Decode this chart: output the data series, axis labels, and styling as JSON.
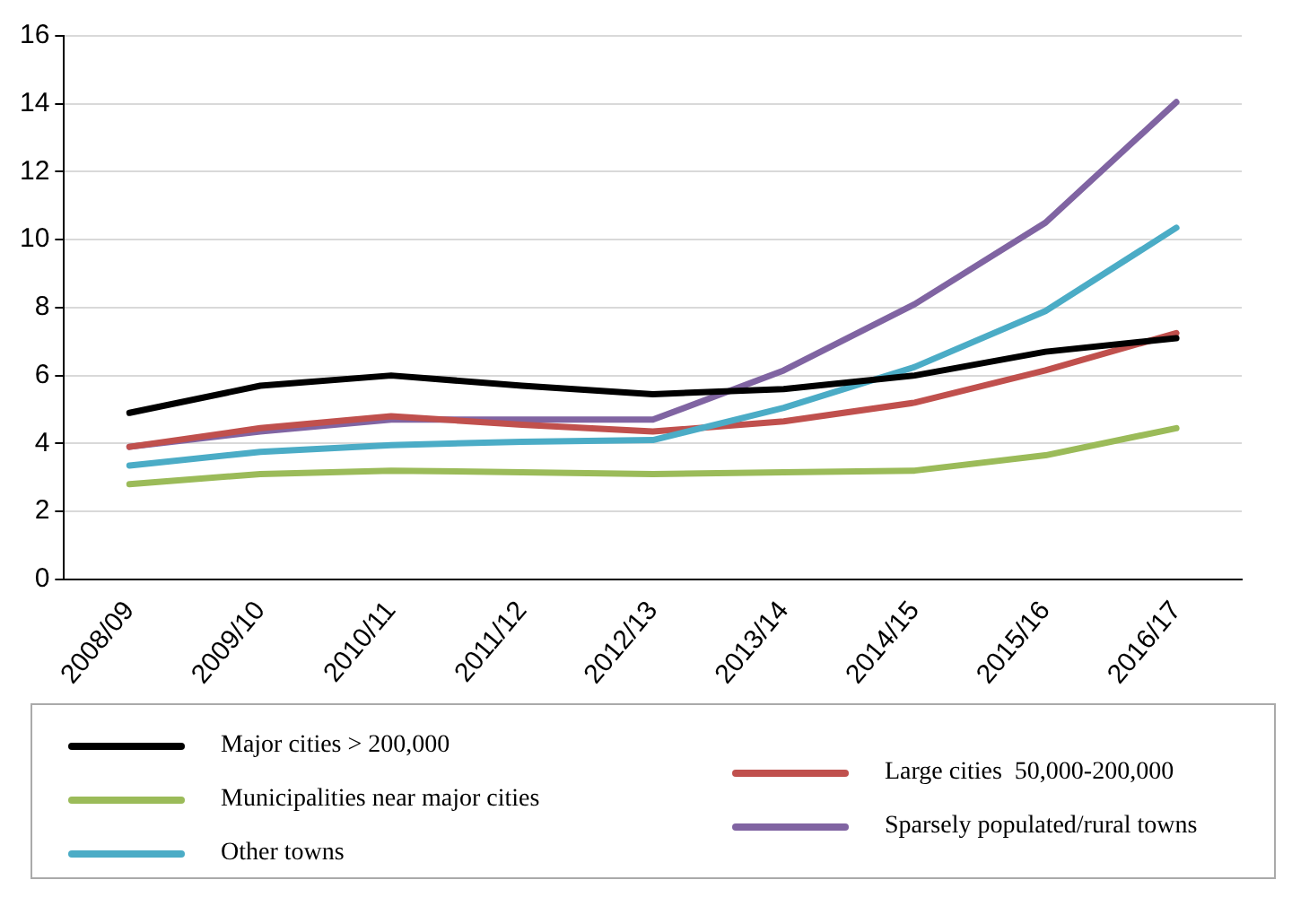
{
  "chart_data": {
    "type": "line",
    "categories": [
      "2008/09",
      "2009/10",
      "2010/11",
      "2011/12",
      "2012/13",
      "2013/14",
      "2014/15",
      "2015/16",
      "2016/17"
    ],
    "ylim": [
      0,
      16
    ],
    "yticks": [
      0,
      2,
      4,
      6,
      8,
      10,
      12,
      14,
      16
    ],
    "grid": "y",
    "legend": "bottom",
    "marker": "none",
    "series": [
      {
        "name": "Major cities > 200,000",
        "color": "#000000",
        "values": [
          4.9,
          5.7,
          6.0,
          5.7,
          5.45,
          5.6,
          6.0,
          6.7,
          7.1
        ]
      },
      {
        "name": "Municipalities near major cities",
        "color": "#9bbb59",
        "values": [
          2.8,
          3.1,
          3.2,
          3.15,
          3.1,
          3.15,
          3.2,
          3.65,
          4.45
        ]
      },
      {
        "name": "Other towns",
        "color": "#4bacc6",
        "values": [
          3.35,
          3.75,
          3.95,
          4.05,
          4.1,
          5.05,
          6.25,
          7.9,
          10.35
        ]
      },
      {
        "name": "Large cities  50,000-200,000",
        "color": "#c0504d",
        "values": [
          3.9,
          4.45,
          4.8,
          4.55,
          4.35,
          4.65,
          5.2,
          6.15,
          7.25
        ]
      },
      {
        "name": "Sparsely populated/rural towns",
        "color": "#8064a2",
        "values": [
          3.9,
          4.35,
          4.7,
          4.7,
          4.7,
          6.15,
          8.1,
          10.5,
          14.05
        ]
      }
    ]
  }
}
